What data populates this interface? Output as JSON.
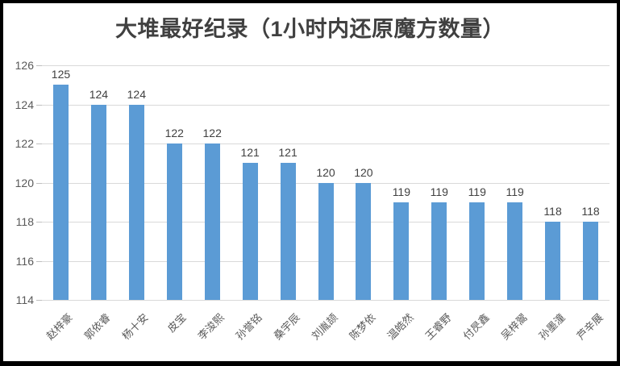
{
  "chart_data": {
    "type": "bar",
    "title": "大堆最好纪录（1小时内还原魔方数量）",
    "categories": [
      "赵梓豪",
      "郭依睿",
      "杨十安",
      "皮宝",
      "李浚熙",
      "孙誉铭",
      "桑宇辰",
      "刘胤颉",
      "陈梦依",
      "温皓然",
      "王睿野",
      "付昃鑫",
      "吴梓翯",
      "孙墨潼",
      "芦辛展"
    ],
    "values": [
      125,
      124,
      124,
      122,
      122,
      121,
      121,
      120,
      120,
      119,
      119,
      119,
      119,
      118,
      118
    ],
    "xlabel": "",
    "ylabel": "",
    "ylim": [
      114,
      126
    ],
    "yticks": [
      114,
      116,
      118,
      120,
      122,
      124,
      126
    ],
    "grid": true,
    "legend_position": "none",
    "value_labels_shown": true,
    "colors": {
      "bar": "#5b9bd5",
      "title": "#404040",
      "value_label": "#404040",
      "axis_label": "#595959",
      "gridline": "#d9d9d9",
      "frame_border": "#000000",
      "background": "#ffffff"
    }
  }
}
